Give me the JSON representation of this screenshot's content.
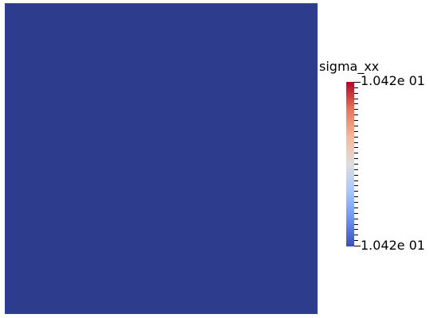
{
  "render": {
    "field_color": "#2e3c8e"
  },
  "legend": {
    "title": "sigma_xx",
    "max_label": "1.042e 01",
    "min_label": "1.042e 01",
    "tick_count": 31,
    "colormap": [
      "#3b4cc0",
      "#6f92f3",
      "#aac7fd",
      "#dddddd",
      "#f7b89c",
      "#e7745b",
      "#b40426"
    ]
  }
}
